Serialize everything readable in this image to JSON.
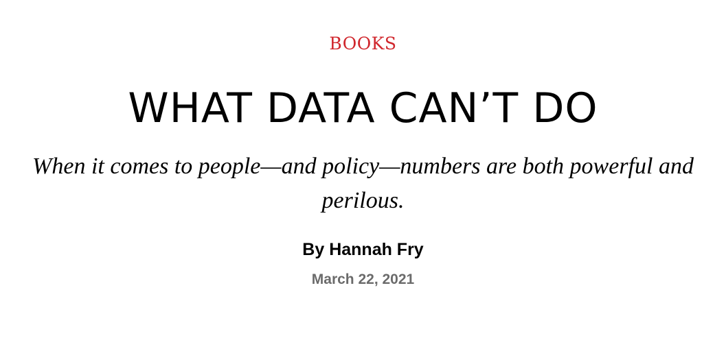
{
  "article": {
    "rubric": "BOOKS",
    "headline": "WHAT DATA CAN’T DO",
    "dek": "When it comes to people—and policy—numbers are both powerful and perilous.",
    "byline_prefix": "By",
    "author": "Hannah Fry",
    "date": "March 22, 2021"
  },
  "colors": {
    "rubric": "#d0262c",
    "text": "#000000",
    "date": "#6b6b6b",
    "background": "#ffffff"
  }
}
